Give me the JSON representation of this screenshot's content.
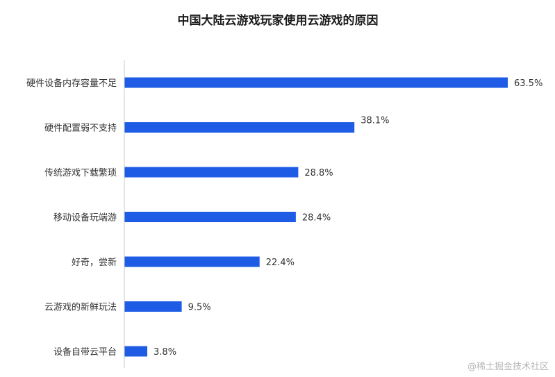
{
  "chart_data": {
    "type": "bar",
    "orientation": "horizontal",
    "title": "中国大陆云游戏玩家使用云游戏的原因",
    "categories": [
      "硬件设备内存容量不足",
      "硬件配置弱不支持",
      "传统游戏下载繁琐",
      "移动设备玩端游",
      "好奇，尝新",
      "云游戏的新鲜玩法",
      "设备自带云平台"
    ],
    "values": [
      63.5,
      38.1,
      28.8,
      28.4,
      22.4,
      9.5,
      3.8
    ],
    "value_labels": [
      "63.5%",
      "38.1%",
      "28.8%",
      "28.4%",
      "22.4%",
      "9.5%",
      "3.8%"
    ],
    "unit": "%",
    "xlim": [
      0,
      63.5
    ],
    "grid": false,
    "bar_color": "#1f5ce6"
  },
  "watermark": "@稀土掘金技术社区"
}
